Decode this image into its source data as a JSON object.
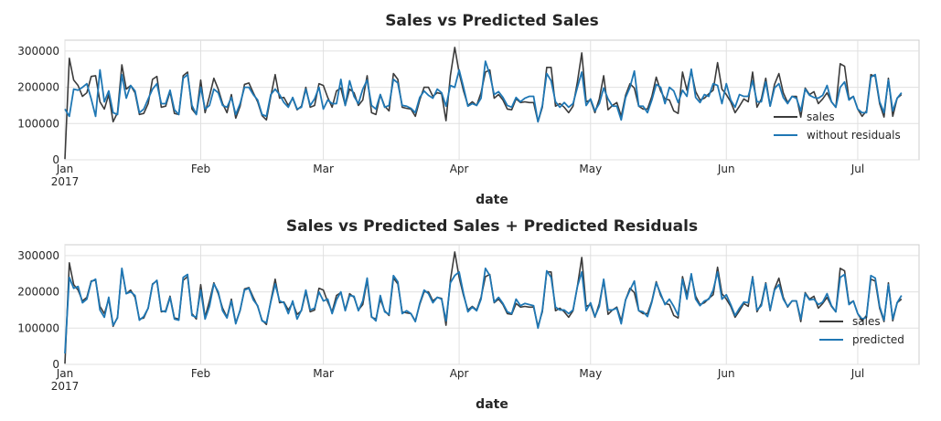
{
  "chart_data": [
    {
      "type": "line",
      "title": "Sales vs Predicted Sales",
      "xlabel": "date",
      "ylabel": "",
      "ylim": [
        0,
        330000
      ],
      "xlim": [
        "2017-01-01",
        "2017-07-15"
      ],
      "yticks": [
        0,
        100000,
        200000,
        300000
      ],
      "xticks": [
        {
          "date": "2017-01-01",
          "label": "Jan",
          "sublabel": "2017"
        },
        {
          "date": "2017-02-01",
          "label": "Feb",
          "sublabel": ""
        },
        {
          "date": "2017-03-01",
          "label": "Mar",
          "sublabel": ""
        },
        {
          "date": "2017-04-01",
          "label": "Apr",
          "sublabel": ""
        },
        {
          "date": "2017-05-01",
          "label": "May",
          "sublabel": ""
        },
        {
          "date": "2017-06-01",
          "label": "Jun",
          "sublabel": ""
        },
        {
          "date": "2017-07-01",
          "label": "Jul",
          "sublabel": ""
        }
      ],
      "grid": true,
      "legend_position": "lower-right",
      "start_date": "2017-01-01",
      "series": [
        {
          "name": "sales",
          "color": "#3b3b3b",
          "values": [
            2000,
            280000,
            220000,
            205000,
            175000,
            185000,
            230000,
            232000,
            160000,
            140000,
            180000,
            105000,
            130000,
            262000,
            195000,
            205000,
            185000,
            125000,
            128000,
            155000,
            222000,
            230000,
            145000,
            148000,
            188000,
            128000,
            125000,
            232000,
            242000,
            140000,
            125000,
            220000,
            130000,
            175000,
            225000,
            195000,
            155000,
            130000,
            180000,
            115000,
            148000,
            208000,
            212000,
            185000,
            160000,
            122000,
            110000,
            175000,
            235000,
            170000,
            172000,
            150000,
            170000,
            138000,
            148000,
            200000,
            145000,
            150000,
            210000,
            205000,
            172000,
            145000,
            190000,
            198000,
            150000,
            195000,
            185000,
            150000,
            165000,
            232000,
            130000,
            125000,
            180000,
            148000,
            135000,
            238000,
            222000,
            145000,
            142000,
            140000,
            120000,
            165000,
            200000,
            200000,
            175000,
            185000,
            182000,
            108000,
            232000,
            310000,
            240000,
            190000,
            150000,
            160000,
            150000,
            185000,
            242000,
            248000,
            170000,
            180000,
            165000,
            140000,
            138000,
            168000,
            158000,
            160000,
            158000,
            158000,
            105000,
            145000,
            255000,
            255000,
            148000,
            155000,
            145000,
            130000,
            148000,
            215000,
            295000,
            160000,
            165000,
            130000,
            168000,
            232000,
            138000,
            150000,
            158000,
            120000,
            178000,
            210000,
            198000,
            148000,
            140000,
            140000,
            175000,
            228000,
            190000,
            168000,
            165000,
            135000,
            128000,
            242000,
            192000,
            245000,
            188000,
            165000,
            170000,
            182000,
            192000,
            268000,
            195000,
            180000,
            160000,
            130000,
            148000,
            168000,
            160000,
            242000,
            145000,
            168000,
            225000,
            148000,
            208000,
            238000,
            185000,
            158000,
            175000,
            175000,
            118000,
            198000,
            180000,
            188000,
            155000,
            168000,
            185000,
            160000,
            145000,
            265000,
            258000,
            168000,
            175000,
            140000,
            120000,
            135000,
            235000,
            230000,
            155000,
            118000,
            225000,
            120000,
            170000,
            180000
          ]
        },
        {
          "name": "without residuals",
          "color": "#1f77b4",
          "values": [
            140000,
            120000,
            195000,
            192000,
            200000,
            210000,
            168000,
            120000,
            248000,
            160000,
            190000,
            130000,
            125000,
            235000,
            170000,
            205000,
            190000,
            130000,
            140000,
            168000,
            195000,
            210000,
            155000,
            155000,
            192000,
            138000,
            125000,
            225000,
            235000,
            150000,
            125000,
            200000,
            140000,
            150000,
            195000,
            185000,
            150000,
            145000,
            172000,
            125000,
            155000,
            200000,
            200000,
            180000,
            165000,
            125000,
            120000,
            180000,
            195000,
            180000,
            158000,
            145000,
            172000,
            140000,
            145000,
            195000,
            150000,
            168000,
            200000,
            140000,
            165000,
            155000,
            155000,
            222000,
            150000,
            218000,
            175000,
            155000,
            195000,
            220000,
            150000,
            140000,
            180000,
            145000,
            150000,
            222000,
            212000,
            150000,
            148000,
            142000,
            130000,
            172000,
            190000,
            178000,
            170000,
            195000,
            185000,
            148000,
            205000,
            200000,
            248000,
            200000,
            148000,
            155000,
            150000,
            170000,
            272000,
            235000,
            180000,
            188000,
            172000,
            150000,
            145000,
            172000,
            160000,
            170000,
            175000,
            175000,
            105000,
            150000,
            238000,
            218000,
            160000,
            145000,
            158000,
            145000,
            155000,
            200000,
            242000,
            150000,
            168000,
            135000,
            155000,
            198000,
            168000,
            148000,
            148000,
            110000,
            172000,
            200000,
            245000,
            148000,
            148000,
            130000,
            165000,
            208000,
            200000,
            155000,
            200000,
            190000,
            158000,
            192000,
            175000,
            250000,
            172000,
            158000,
            180000,
            175000,
            210000,
            205000,
            155000,
            210000,
            165000,
            145000,
            180000,
            175000,
            175000,
            218000,
            160000,
            160000,
            215000,
            148000,
            198000,
            210000,
            172000,
            155000,
            175000,
            170000,
            135000,
            195000,
            178000,
            172000,
            170000,
            178000,
            205000,
            160000,
            145000,
            200000,
            215000,
            165000,
            175000,
            140000,
            130000,
            130000,
            228000,
            235000,
            160000,
            130000,
            220000,
            135000,
            170000,
            185000
          ]
        }
      ]
    },
    {
      "type": "line",
      "title": "Sales vs Predicted Sales + Predicted Residuals",
      "xlabel": "date",
      "ylabel": "",
      "ylim": [
        0,
        330000
      ],
      "xlim": [
        "2017-01-01",
        "2017-07-15"
      ],
      "yticks": [
        0,
        100000,
        200000,
        300000
      ],
      "xticks": [
        {
          "date": "2017-01-01",
          "label": "Jan",
          "sublabel": "2017"
        },
        {
          "date": "2017-02-01",
          "label": "Feb",
          "sublabel": ""
        },
        {
          "date": "2017-03-01",
          "label": "Mar",
          "sublabel": ""
        },
        {
          "date": "2017-04-01",
          "label": "Apr",
          "sublabel": ""
        },
        {
          "date": "2017-05-01",
          "label": "May",
          "sublabel": ""
        },
        {
          "date": "2017-06-01",
          "label": "Jun",
          "sublabel": ""
        },
        {
          "date": "2017-07-01",
          "label": "Jul",
          "sublabel": ""
        }
      ],
      "grid": true,
      "legend_position": "lower-right",
      "start_date": "2017-01-01",
      "series": [
        {
          "name": "sales",
          "color": "#3b3b3b",
          "values": [
            2000,
            280000,
            220000,
            205000,
            175000,
            185000,
            230000,
            232000,
            160000,
            140000,
            180000,
            105000,
            130000,
            262000,
            195000,
            205000,
            185000,
            125000,
            128000,
            155000,
            222000,
            230000,
            145000,
            148000,
            188000,
            128000,
            125000,
            232000,
            242000,
            140000,
            125000,
            220000,
            130000,
            175000,
            225000,
            195000,
            155000,
            130000,
            180000,
            115000,
            148000,
            208000,
            212000,
            185000,
            160000,
            122000,
            110000,
            175000,
            235000,
            170000,
            172000,
            150000,
            170000,
            138000,
            148000,
            200000,
            145000,
            150000,
            210000,
            205000,
            172000,
            145000,
            190000,
            198000,
            150000,
            195000,
            185000,
            150000,
            165000,
            232000,
            130000,
            125000,
            180000,
            148000,
            135000,
            238000,
            222000,
            145000,
            142000,
            140000,
            120000,
            165000,
            200000,
            200000,
            175000,
            185000,
            182000,
            108000,
            232000,
            310000,
            240000,
            190000,
            150000,
            160000,
            150000,
            185000,
            242000,
            248000,
            170000,
            180000,
            165000,
            140000,
            138000,
            168000,
            158000,
            160000,
            158000,
            158000,
            105000,
            145000,
            255000,
            255000,
            148000,
            155000,
            145000,
            130000,
            148000,
            215000,
            295000,
            160000,
            165000,
            130000,
            168000,
            232000,
            138000,
            150000,
            158000,
            120000,
            178000,
            210000,
            198000,
            148000,
            140000,
            140000,
            175000,
            228000,
            190000,
            168000,
            165000,
            135000,
            128000,
            242000,
            192000,
            245000,
            188000,
            165000,
            170000,
            182000,
            192000,
            268000,
            195000,
            180000,
            160000,
            130000,
            148000,
            168000,
            160000,
            242000,
            145000,
            168000,
            225000,
            148000,
            208000,
            238000,
            185000,
            158000,
            175000,
            175000,
            118000,
            198000,
            180000,
            188000,
            155000,
            168000,
            185000,
            160000,
            145000,
            265000,
            258000,
            168000,
            175000,
            140000,
            120000,
            135000,
            235000,
            230000,
            155000,
            118000,
            225000,
            120000,
            170000,
            180000
          ]
        },
        {
          "name": "predicted",
          "color": "#1f77b4",
          "values": [
            30000,
            240000,
            210000,
            215000,
            170000,
            180000,
            228000,
            235000,
            150000,
            130000,
            185000,
            108000,
            128000,
            265000,
            195000,
            200000,
            190000,
            122000,
            132000,
            155000,
            220000,
            232000,
            148000,
            145000,
            185000,
            125000,
            122000,
            240000,
            248000,
            135000,
            130000,
            205000,
            125000,
            160000,
            222000,
            200000,
            148000,
            128000,
            175000,
            112000,
            150000,
            205000,
            210000,
            178000,
            162000,
            120000,
            115000,
            172000,
            222000,
            175000,
            170000,
            140000,
            175000,
            125000,
            150000,
            205000,
            150000,
            155000,
            200000,
            175000,
            180000,
            140000,
            178000,
            200000,
            148000,
            190000,
            188000,
            148000,
            175000,
            238000,
            132000,
            120000,
            190000,
            145000,
            138000,
            245000,
            228000,
            140000,
            148000,
            140000,
            118000,
            168000,
            205000,
            195000,
            170000,
            185000,
            180000,
            120000,
            225000,
            245000,
            255000,
            195000,
            145000,
            158000,
            148000,
            180000,
            265000,
            245000,
            172000,
            185000,
            168000,
            145000,
            140000,
            180000,
            162000,
            168000,
            165000,
            162000,
            100000,
            150000,
            258000,
            240000,
            158000,
            150000,
            150000,
            140000,
            150000,
            215000,
            255000,
            148000,
            170000,
            132000,
            160000,
            235000,
            150000,
            150000,
            155000,
            112000,
            178000,
            205000,
            230000,
            148000,
            145000,
            132000,
            172000,
            225000,
            195000,
            165000,
            180000,
            160000,
            135000,
            235000,
            180000,
            250000,
            180000,
            162000,
            175000,
            180000,
            205000,
            255000,
            180000,
            192000,
            165000,
            135000,
            155000,
            172000,
            170000,
            240000,
            150000,
            162000,
            222000,
            150000,
            205000,
            220000,
            180000,
            160000,
            175000,
            175000,
            125000,
            195000,
            178000,
            180000,
            165000,
            172000,
            195000,
            162000,
            145000,
            240000,
            248000,
            165000,
            175000,
            140000,
            125000,
            130000,
            245000,
            238000,
            160000,
            122000,
            220000,
            125000,
            170000,
            190000
          ]
        }
      ]
    }
  ]
}
